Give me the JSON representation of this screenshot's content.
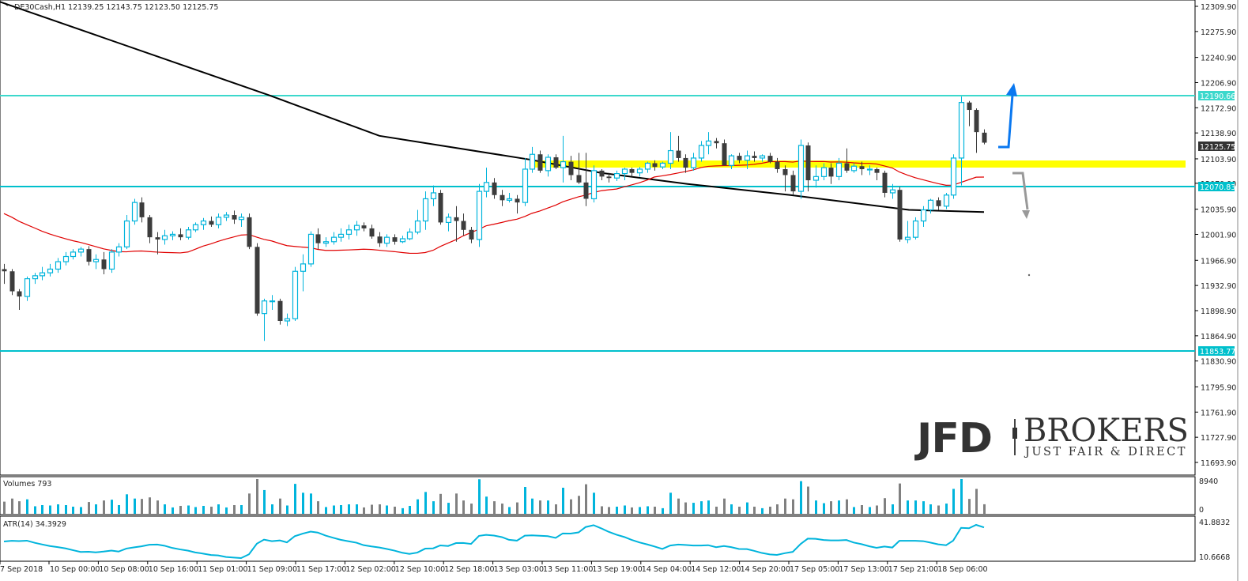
{
  "header": {
    "symbol": "DE30Cash,H1",
    "open": "12139.25",
    "high": "12143.75",
    "low": "12123.50",
    "close": "12125.75",
    "text": "DE30Cash,H1  12139.25 12143.75 12123.50 12125.75"
  },
  "colors": {
    "bull": "#00b4dc",
    "bear": "#3c3c3c",
    "ma_fast": "#e00000",
    "ma_slow": "#000000",
    "hline": "#20c8c8",
    "zone": "#ffff00",
    "arrow_up": "#0a78f0",
    "arrow_down": "#999999",
    "atr": "#00b4dc",
    "vol_up": "#00b4dc",
    "vol_down": "#808080"
  },
  "price_axis": {
    "ticks": [
      "12309.90",
      "12275.90",
      "12240.90",
      "12206.90",
      "12172.90",
      "12138.90",
      "12103.90",
      "12070.90",
      "12035.90",
      "12001.90",
      "11966.90",
      "11932.90",
      "11898.90",
      "11864.90",
      "11830.90",
      "11795.90",
      "11761.90",
      "11727.90",
      "11693.90"
    ],
    "current_price_tag": "12125.75",
    "level_tags": [
      "12190.66",
      "12070.83",
      "11853.77"
    ]
  },
  "volume_pane": {
    "label": "Volumes 793",
    "max_label": "8940",
    "min_label": "0"
  },
  "atr_pane": {
    "label": "ATR(14) 34.3929",
    "max_label": "41.8832",
    "min_label": "10.6668"
  },
  "time_axis": {
    "labels": [
      "7 Sep 2018",
      "10 Sep 00:00",
      "10 Sep 08:00",
      "10 Sep 16:00",
      "11 Sep 01:00",
      "11 Sep 09:00",
      "11 Sep 17:00",
      "12 Sep 02:00",
      "12 Sep 10:00",
      "12 Sep 18:00",
      "13 Sep 03:00",
      "13 Sep 11:00",
      "13 Sep 19:00",
      "14 Sep 04:00",
      "14 Sep 12:00",
      "14 Sep 20:00",
      "17 Sep 05:00",
      "17 Sep 13:00",
      "17 Sep 21:00",
      "18 Sep 06:00"
    ]
  },
  "logo": {
    "brand": "JFD",
    "name": "BROKERS",
    "tagline": "JUST FAIR & DIRECT"
  },
  "chart_data": {
    "type": "candlestick",
    "title": "DE30Cash,H1",
    "symbol": "DE30Cash",
    "timeframe": "H1",
    "ylim": [
      11693.9,
      12309.9
    ],
    "ohlc_last": {
      "open": 12139.25,
      "high": 12143.75,
      "low": 12123.5,
      "close": 12125.75
    },
    "horizontal_levels": [
      12190.66,
      12070.83,
      11853.77
    ],
    "resistance_zone": [
      12096,
      12106
    ],
    "x_labels": [
      "7 Sep 2018",
      "10 Sep 00:00",
      "10 Sep 08:00",
      "10 Sep 16:00",
      "11 Sep 01:00",
      "11 Sep 09:00",
      "11 Sep 17:00",
      "12 Sep 02:00",
      "12 Sep 10:00",
      "12 Sep 18:00",
      "13 Sep 03:00",
      "13 Sep 11:00",
      "13 Sep 19:00",
      "14 Sep 04:00",
      "14 Sep 12:00",
      "14 Sep 20:00",
      "17 Sep 05:00",
      "17 Sep 13:00",
      "17 Sep 21:00",
      "18 Sep 06:00"
    ],
    "candles": [
      [
        11955,
        11962,
        11935,
        11952
      ],
      [
        11952,
        11955,
        11920,
        11925
      ],
      [
        11925,
        11928,
        11900,
        11918
      ],
      [
        11918,
        11945,
        11912,
        11942
      ],
      [
        11942,
        11950,
        11935,
        11946
      ],
      [
        11946,
        11958,
        11940,
        11950
      ],
      [
        11950,
        11962,
        11945,
        11955
      ],
      [
        11955,
        11970,
        11950,
        11965
      ],
      [
        11965,
        11978,
        11960,
        11972
      ],
      [
        11972,
        11982,
        11968,
        11978
      ],
      [
        11978,
        11985,
        11972,
        11982
      ],
      [
        11982,
        11986,
        11960,
        11965
      ],
      [
        11965,
        11975,
        11955,
        11968
      ],
      [
        11968,
        11978,
        11948,
        11955
      ],
      [
        11955,
        11982,
        11950,
        11978
      ],
      [
        11978,
        11990,
        11972,
        11985
      ],
      [
        11985,
        12028,
        11982,
        12020
      ],
      [
        12020,
        12050,
        12015,
        12045
      ],
      [
        12045,
        12052,
        12018,
        12025
      ],
      [
        12025,
        12028,
        11990,
        11998
      ],
      [
        11998,
        12005,
        11975,
        11995
      ],
      [
        11995,
        12008,
        11988,
        12000
      ],
      [
        12000,
        12006,
        11994,
        12002
      ],
      [
        12002,
        12010,
        11994,
        11998
      ],
      [
        11998,
        12012,
        11995,
        12008
      ],
      [
        12008,
        12018,
        12005,
        12015
      ],
      [
        12015,
        12024,
        12008,
        12020
      ],
      [
        12020,
        12026,
        12012,
        12015
      ],
      [
        12015,
        12030,
        12010,
        12025
      ],
      [
        12025,
        12032,
        12020,
        12028
      ],
      [
        12028,
        12034,
        12016,
        12022
      ],
      [
        12022,
        12030,
        12012,
        12025
      ],
      [
        12025,
        12030,
        11982,
        11985
      ],
      [
        11985,
        11990,
        11892,
        11895
      ],
      [
        11895,
        11915,
        11858,
        11912
      ],
      [
        11912,
        11920,
        11900,
        11912
      ],
      [
        11912,
        11915,
        11880,
        11885
      ],
      [
        11885,
        11895,
        11878,
        11888
      ],
      [
        11888,
        11958,
        11885,
        11952
      ],
      [
        11952,
        11975,
        11925,
        11962
      ],
      [
        11962,
        12006,
        11958,
        12002
      ],
      [
        12002,
        12010,
        11982,
        11990
      ],
      [
        11990,
        11998,
        11985,
        11992
      ],
      [
        11992,
        12005,
        11988,
        11998
      ],
      [
        11998,
        12010,
        11992,
        12002
      ],
      [
        12002,
        12015,
        11995,
        12008
      ],
      [
        12008,
        12020,
        12000,
        12014
      ],
      [
        12014,
        12018,
        12006,
        12010
      ],
      [
        12010,
        12015,
        11996,
        11999
      ],
      [
        11999,
        12005,
        11985,
        11990
      ],
      [
        11990,
        12002,
        11985,
        11998
      ],
      [
        11998,
        12002,
        11988,
        11992
      ],
      [
        11992,
        12000,
        11990,
        11996
      ],
      [
        11996,
        12010,
        11994,
        12005
      ],
      [
        12005,
        12035,
        12002,
        12020
      ],
      [
        12020,
        12060,
        12008,
        12050
      ],
      [
        12050,
        12068,
        12040,
        12058
      ],
      [
        12058,
        12062,
        12015,
        12018
      ],
      [
        12018,
        12030,
        12006,
        12025
      ],
      [
        12025,
        12040,
        11992,
        12020
      ],
      [
        12020,
        12030,
        12000,
        12008
      ],
      [
        12008,
        12012,
        11990,
        11995
      ],
      [
        11995,
        12070,
        11985,
        12060
      ],
      [
        12060,
        12092,
        12052,
        12072
      ],
      [
        12072,
        12078,
        12050,
        12055
      ],
      [
        12055,
        12062,
        12040,
        12048
      ],
      [
        12048,
        12058,
        12045,
        12050
      ],
      [
        12050,
        12055,
        12030,
        12045
      ],
      [
        12045,
        12105,
        12040,
        12090
      ],
      [
        12090,
        12120,
        12085,
        12110
      ],
      [
        12110,
        12115,
        12085,
        12088
      ],
      [
        12088,
        12110,
        12080,
        12106
      ],
      [
        12106,
        12110,
        12090,
        12092
      ],
      [
        12092,
        12135,
        12072,
        12100
      ],
      [
        12100,
        12108,
        12075,
        12082
      ],
      [
        12082,
        12112,
        12070,
        12072
      ],
      [
        12072,
        12112,
        12040,
        12050
      ],
      [
        12050,
        12095,
        12045,
        12088
      ],
      [
        12088,
        12090,
        12075,
        12080
      ],
      [
        12080,
        12085,
        12072,
        12078
      ],
      [
        12078,
        12088,
        12074,
        12084
      ],
      [
        12084,
        12092,
        12075,
        12090
      ],
      [
        12090,
        12092,
        12080,
        12085
      ],
      [
        12085,
        12093,
        12080,
        12090
      ],
      [
        12090,
        12100,
        12085,
        12098
      ],
      [
        12098,
        12102,
        12088,
        12093
      ],
      [
        12093,
        12100,
        12090,
        12098
      ],
      [
        12098,
        12140,
        12090,
        12115
      ],
      [
        12115,
        12135,
        12100,
        12105
      ],
      [
        12105,
        12110,
        12085,
        12092
      ],
      [
        12092,
        12112,
        12088,
        12105
      ],
      [
        12105,
        12128,
        12100,
        12122
      ],
      [
        12122,
        12140,
        12110,
        12128
      ],
      [
        12128,
        12132,
        12118,
        12125
      ],
      [
        12125,
        12130,
        12095,
        12095
      ],
      [
        12095,
        12110,
        12090,
        12108
      ],
      [
        12108,
        12112,
        12098,
        12102
      ],
      [
        12102,
        12115,
        12090,
        12108
      ],
      [
        12108,
        12114,
        12100,
        12105
      ],
      [
        12105,
        12110,
        12100,
        12108
      ],
      [
        12108,
        12112,
        12098,
        12100
      ],
      [
        12100,
        12105,
        12085,
        12090
      ],
      [
        12090,
        12095,
        12060,
        12082
      ],
      [
        12082,
        12088,
        12055,
        12060
      ],
      [
        12060,
        12130,
        12050,
        12122
      ],
      [
        12122,
        12126,
        12060,
        12075
      ],
      [
        12075,
        12095,
        12065,
        12080
      ],
      [
        12080,
        12098,
        12075,
        12092
      ],
      [
        12092,
        12098,
        12070,
        12080
      ],
      [
        12080,
        12105,
        12075,
        12098
      ],
      [
        12098,
        12118,
        12085,
        12088
      ],
      [
        12088,
        12098,
        12085,
        12094
      ],
      [
        12094,
        12100,
        12082,
        12090
      ],
      [
        12090,
        12095,
        12082,
        12090
      ],
      [
        12090,
        12092,
        12075,
        12085
      ],
      [
        12085,
        12088,
        12052,
        12058
      ],
      [
        12058,
        12070,
        12050,
        12062
      ],
      [
        12062,
        12066,
        11992,
        11995
      ],
      [
        11995,
        12020,
        11990,
        11998
      ],
      [
        11998,
        12025,
        11995,
        12020
      ],
      [
        12020,
        12040,
        12012,
        12035
      ],
      [
        12035,
        12050,
        12030,
        12048
      ],
      [
        12048,
        12052,
        12035,
        12040
      ],
      [
        12040,
        12058,
        12036,
        12055
      ],
      [
        12055,
        12110,
        12050,
        12105
      ],
      [
        12105,
        12188,
        12068,
        12180
      ],
      [
        12180,
        12182,
        12148,
        12170
      ],
      [
        12170,
        12172,
        12112,
        12140
      ],
      [
        12139.25,
        12143.75,
        12123.5,
        12125.75
      ]
    ],
    "ma_fast_color": "red",
    "ma_slow_color": "black",
    "annotations": [
      "blue arrow up (breakout above 12190.66)",
      "grey arrow down (rejection below yellow zone)"
    ]
  }
}
